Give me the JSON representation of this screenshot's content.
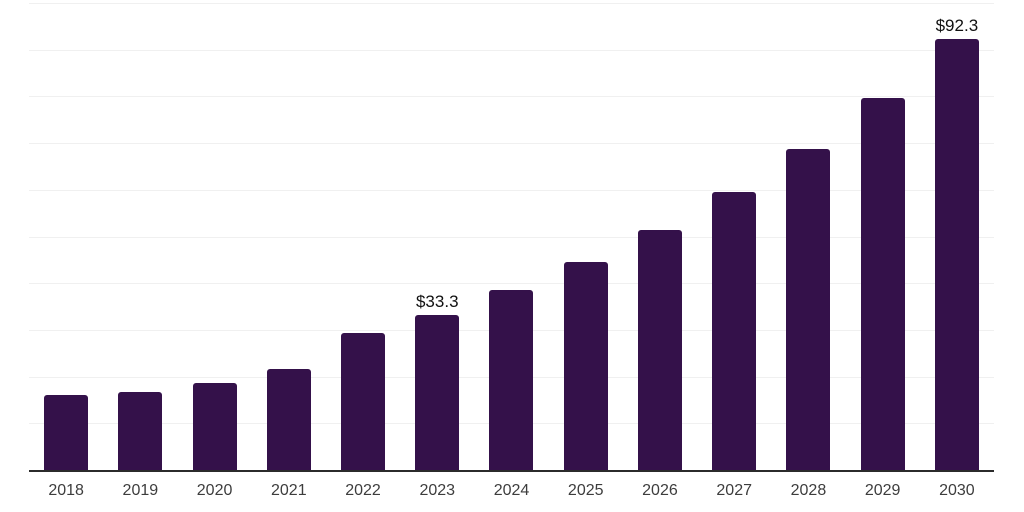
{
  "chart_data": {
    "type": "bar",
    "title": "",
    "xlabel": "",
    "ylabel": "",
    "categories": [
      "2018",
      "2019",
      "2020",
      "2021",
      "2022",
      "2023",
      "2024",
      "2025",
      "2026",
      "2027",
      "2028",
      "2029",
      "2030"
    ],
    "values": [
      16.0,
      16.6,
      18.7,
      21.6,
      29.4,
      33.3,
      38.6,
      44.6,
      51.4,
      59.5,
      68.8,
      79.7,
      92.3
    ],
    "value_labels": [
      "",
      "",
      "",
      "",
      "",
      "$33.3",
      "",
      "",
      "",
      "",
      "",
      "",
      "$92.3"
    ],
    "ylim": [
      0,
      100
    ],
    "grid_step": 10,
    "grid": "horizontal",
    "legend_position": "none",
    "colors": {
      "bar": "#34114a",
      "gridline": "#f0f0f0",
      "axis_line": "#2b2b2b",
      "tick_label": "#3d3d3d",
      "value_label": "#111111",
      "background": "#ffffff"
    }
  }
}
